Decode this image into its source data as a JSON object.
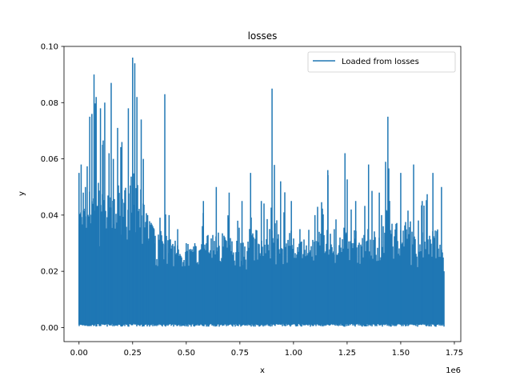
{
  "chart_data": {
    "type": "line",
    "title": "losses",
    "xlabel": "x",
    "ylabel": "y",
    "x_offset_label": "1e6",
    "xlim": [
      -70000,
      1780000
    ],
    "ylim": [
      -0.005,
      0.1
    ],
    "x_ticks": [
      0,
      250000,
      500000,
      750000,
      1000000,
      1250000,
      1500000,
      1750000
    ],
    "x_tick_labels": [
      "0.00",
      "0.25",
      "0.50",
      "0.75",
      "1.00",
      "1.25",
      "1.50",
      "1.75"
    ],
    "y_ticks": [
      0.0,
      0.02,
      0.04,
      0.06,
      0.08,
      0.1
    ],
    "y_tick_labels": [
      "0.00",
      "0.02",
      "0.04",
      "0.06",
      "0.08",
      "0.10"
    ],
    "grid": false,
    "legend_position": "top-right",
    "color": "#1f77b4",
    "series": [
      {
        "name": "Loaded from losses",
        "x": [
          0,
          10000,
          20000,
          30000,
          50000,
          60000,
          70000,
          80000,
          100000,
          110000,
          120000,
          140000,
          150000,
          160000,
          180000,
          200000,
          230000,
          250000,
          260000,
          270000,
          290000,
          300000,
          320000,
          350000,
          400000,
          420000,
          460000,
          500000,
          540000,
          580000,
          640000,
          700000,
          740000,
          760000,
          780000,
          800000,
          850000,
          900000,
          940000,
          990000,
          1030000,
          1100000,
          1160000,
          1190000,
          1240000,
          1290000,
          1350000,
          1400000,
          1440000,
          1500000,
          1560000,
          1600000,
          1650000,
          1690000,
          1700000
        ],
        "y": [
          0.055,
          0.058,
          0.048,
          0.05,
          0.075,
          0.076,
          0.09,
          0.082,
          0.078,
          0.065,
          0.08,
          0.062,
          0.087,
          0.06,
          0.071,
          0.066,
          0.078,
          0.096,
          0.094,
          0.082,
          0.074,
          0.06,
          0.04,
          0.035,
          0.083,
          0.04,
          0.035,
          0.03,
          0.03,
          0.045,
          0.05,
          0.048,
          0.038,
          0.045,
          0.02,
          0.055,
          0.045,
          0.085,
          0.052,
          0.045,
          0.035,
          0.04,
          0.056,
          0.035,
          0.062,
          0.045,
          0.058,
          0.048,
          0.075,
          0.055,
          0.058,
          0.045,
          0.055,
          0.05,
          0.02
        ]
      }
    ]
  }
}
